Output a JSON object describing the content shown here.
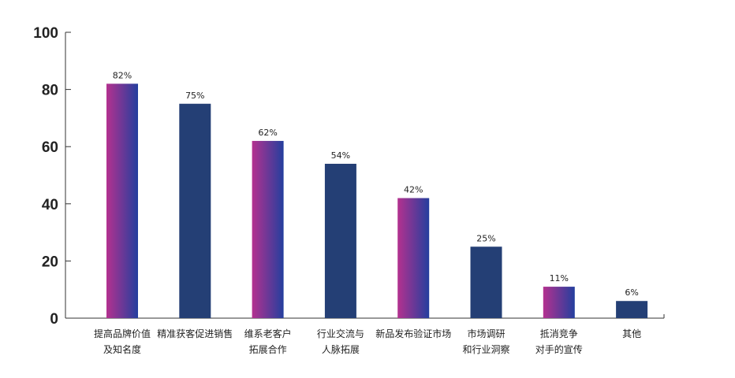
{
  "chart_data": {
    "type": "bar",
    "categories": [
      [
        "提高品牌价值",
        "及知名度"
      ],
      [
        "精准获客促进销售"
      ],
      [
        "维系老客户",
        "拓展合作"
      ],
      [
        "行业交流与",
        "人脉拓展"
      ],
      [
        "新品发布验证市场"
      ],
      [
        "市场调研",
        "和行业洞察"
      ],
      [
        "抵消竞争",
        "对手的宣传"
      ],
      [
        "其他"
      ]
    ],
    "values": [
      82,
      75,
      62,
      54,
      42,
      25,
      11,
      6
    ],
    "data_labels": [
      "82%",
      "75%",
      "62%",
      "54%",
      "42%",
      "25%",
      "11%",
      "6%"
    ],
    "bar_styles": [
      "gradient",
      "solid",
      "gradient",
      "solid",
      "gradient",
      "solid",
      "gradient",
      "solid"
    ],
    "ylim": [
      0,
      100
    ],
    "yticks": [
      0,
      20,
      40,
      60,
      80,
      100
    ],
    "title": "",
    "xlabel": "",
    "ylabel": "",
    "grid": false,
    "colors": {
      "solid": "#243f75",
      "gradient_start": "#b4318f",
      "gradient_end": "#243f9e",
      "axis": "#333333"
    }
  }
}
